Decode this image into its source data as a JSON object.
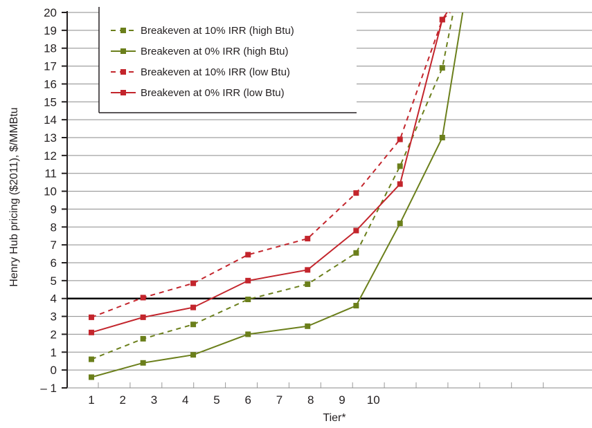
{
  "chart_data": {
    "type": "line",
    "xlabel": "Tier*",
    "ylabel": "Henry Hub pricing ($2011), $/MMBtu",
    "x_ticks": [
      "1",
      "2",
      "3",
      "4",
      "5",
      "6",
      "7",
      "8",
      "9",
      "10"
    ],
    "x_range": [
      1,
      17
    ],
    "ylim": [
      -1,
      20
    ],
    "y_ticks": [
      "– 1",
      "0",
      "1",
      "2",
      "3",
      "4",
      "5",
      "6",
      "7",
      "8",
      "9",
      "10",
      "11",
      "12",
      "13",
      "14",
      "15",
      "16",
      "17",
      "18",
      "19",
      "20"
    ],
    "grid": true,
    "legend_position": "top-left",
    "reference_line": 4,
    "series": [
      {
        "name": "Breakeven at 10% IRR (high Btu)",
        "color": "#6b7f1b",
        "dashed": true,
        "points": [
          [
            1,
            0.6
          ],
          [
            2.65,
            1.75
          ],
          [
            4.25,
            2.55
          ],
          [
            6.0,
            3.95
          ],
          [
            7.9,
            4.8
          ],
          [
            9.45,
            6.55
          ],
          [
            10.85,
            11.4
          ],
          [
            12.2,
            16.9
          ],
          [
            12.55,
            20
          ]
        ]
      },
      {
        "name": "Breakeven at 0% IRR (high Btu)",
        "color": "#6b7f1b",
        "dashed": false,
        "points": [
          [
            1,
            -0.4
          ],
          [
            2.65,
            0.4
          ],
          [
            4.25,
            0.85
          ],
          [
            6.0,
            2.0
          ],
          [
            7.9,
            2.45
          ],
          [
            9.45,
            3.6
          ],
          [
            10.85,
            8.2
          ],
          [
            12.2,
            13.0
          ],
          [
            12.85,
            20
          ]
        ]
      },
      {
        "name": "Breakeven at 10% IRR (low Btu)",
        "color": "#c3252c",
        "dashed": true,
        "points": [
          [
            1,
            2.95
          ],
          [
            2.65,
            4.05
          ],
          [
            4.25,
            4.85
          ],
          [
            6.0,
            6.45
          ],
          [
            7.9,
            7.35
          ],
          [
            9.45,
            9.9
          ],
          [
            10.85,
            12.9
          ],
          [
            12.2,
            19.6
          ],
          [
            12.45,
            20
          ]
        ]
      },
      {
        "name": "Breakeven at 0% IRR (low Btu)",
        "color": "#c3252c",
        "dashed": false,
        "points": [
          [
            1,
            2.1
          ],
          [
            2.65,
            2.95
          ],
          [
            4.25,
            3.5
          ],
          [
            6.0,
            5.0
          ],
          [
            7.9,
            5.6
          ],
          [
            9.45,
            7.8
          ],
          [
            10.85,
            10.4
          ],
          [
            12.2,
            19.6
          ],
          [
            12.35,
            20
          ]
        ]
      }
    ]
  }
}
